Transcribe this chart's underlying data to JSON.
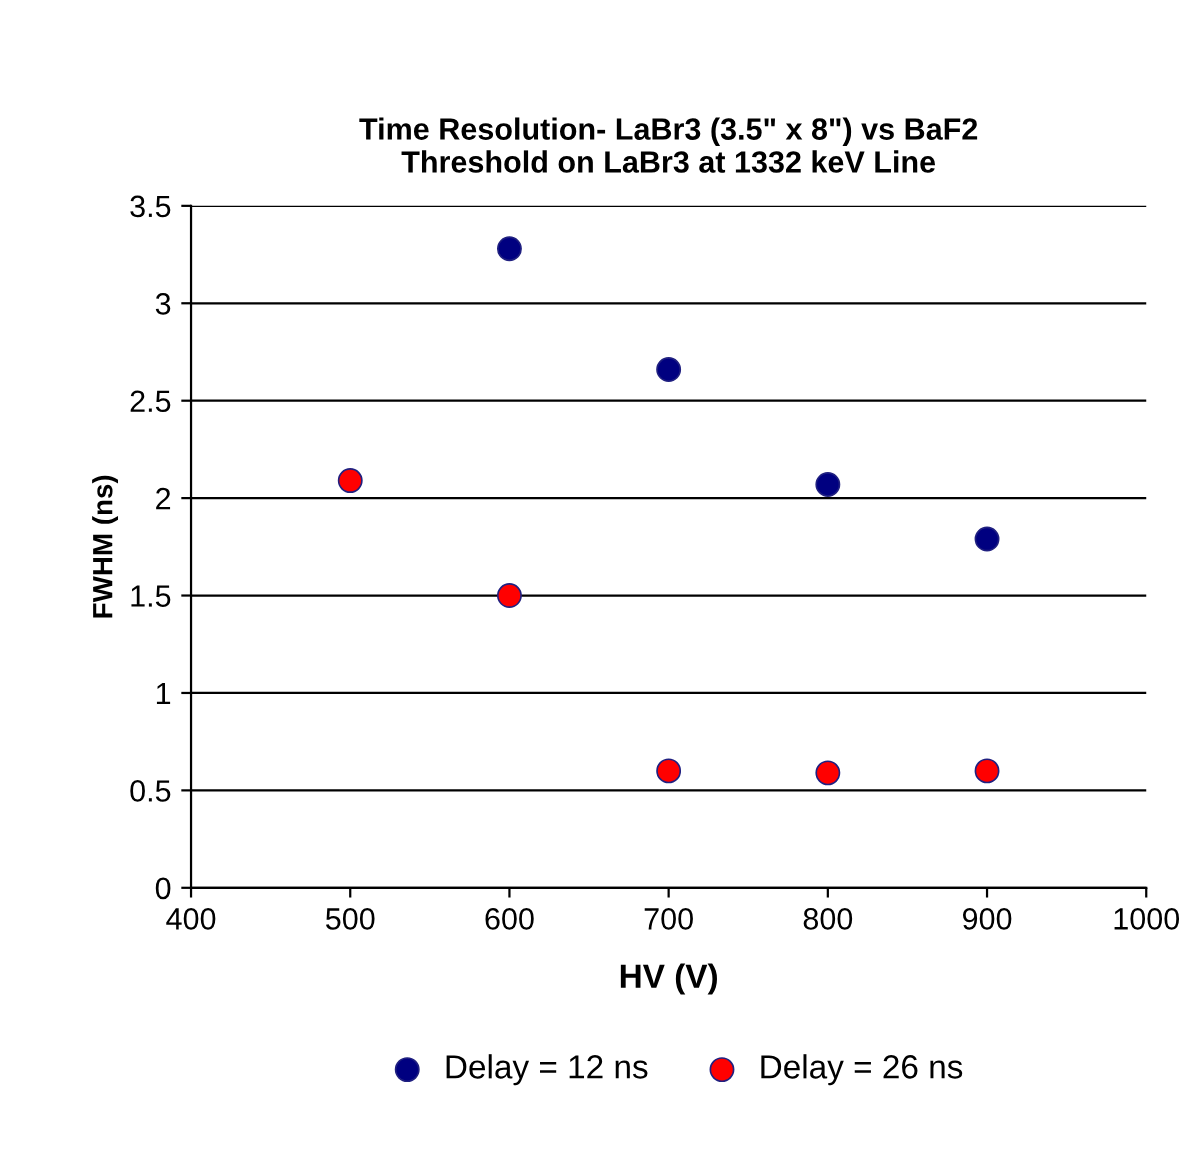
{
  "chart_data": {
    "type": "scatter",
    "title": "Time Resolution- LaBr3 (3.5\" x 8\") vs BaF2\nThreshold on LaBr3 at 1332 keV Line",
    "xlabel": "HV (V)",
    "ylabel": "FWHM (ns)",
    "series": [
      {
        "name": "Delay = 12 ns",
        "color": "#000080",
        "x": [
          600,
          700,
          800,
          900
        ],
        "values": [
          3.28,
          2.66,
          2.07,
          1.79
        ]
      },
      {
        "name": "Delay = 26 ns",
        "color": "#ff0000",
        "x": [
          500,
          600,
          700,
          800,
          900
        ],
        "values": [
          2.09,
          1.5,
          0.6,
          0.59,
          0.6
        ]
      }
    ],
    "xlim": [
      400,
      1000
    ],
    "xticks": [
      400,
      500,
      600,
      700,
      800,
      900,
      1000
    ],
    "ylim": [
      0,
      3.5
    ],
    "yticks": [
      0,
      0.5,
      1,
      1.5,
      2,
      2.5,
      3,
      3.5
    ],
    "grid": "y",
    "legend": "bottom",
    "marker": "circle"
  }
}
